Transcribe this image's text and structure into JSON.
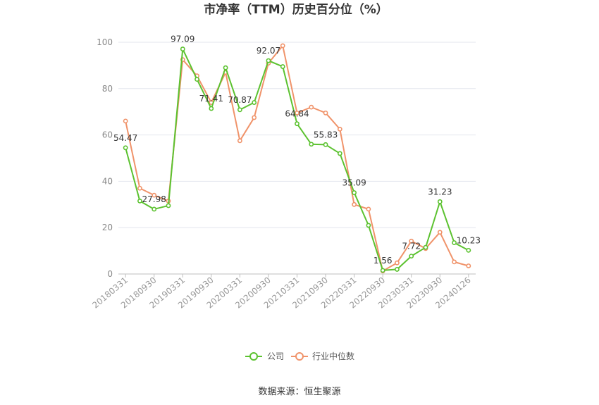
{
  "chart_data": {
    "type": "line",
    "title": "市净率（TTM）历史百分位（%）",
    "source": "数据来源：恒生聚源",
    "ylim": [
      0,
      100
    ],
    "yticks": [
      0,
      20,
      40,
      60,
      80,
      100
    ],
    "x_tick_labels": [
      "20180331",
      "20180930",
      "20190331",
      "20190930",
      "20200331",
      "20200930",
      "20210331",
      "20210930",
      "20220331",
      "20220930",
      "20230331",
      "20230930",
      "20240126"
    ],
    "point_count": 25,
    "grid": true,
    "legend_position": "bottom",
    "series": [
      {
        "name": "公司",
        "color": "#5cc230",
        "values": [
          54.47,
          31.5,
          27.98,
          29.5,
          97.09,
          84.0,
          71.41,
          89.0,
          70.87,
          74.0,
          92.07,
          89.5,
          64.84,
          56.0,
          55.83,
          52.0,
          35.09,
          21.0,
          1.56,
          2.0,
          7.72,
          11.5,
          31.23,
          13.5,
          10.23
        ],
        "labels": [
          "54.47",
          "",
          "27.98",
          "",
          "97.09",
          "",
          "71.41",
          "",
          "70.87",
          "",
          "92.07",
          "",
          "64.84",
          "",
          "55.83",
          "",
          "35.09",
          "",
          "1.56",
          "",
          "7.72",
          "",
          "31.23",
          "",
          "10.23"
        ]
      },
      {
        "name": "行业中位数",
        "color": "#f0936a",
        "values": [
          66.0,
          37.0,
          34.0,
          31.5,
          92.5,
          85.5,
          74.0,
          87.0,
          57.5,
          67.5,
          91.0,
          98.5,
          69.5,
          72.0,
          69.5,
          62.5,
          30.0,
          28.0,
          1.3,
          4.8,
          14.2,
          11.0,
          18.0,
          5.2,
          3.5
        ]
      }
    ]
  }
}
